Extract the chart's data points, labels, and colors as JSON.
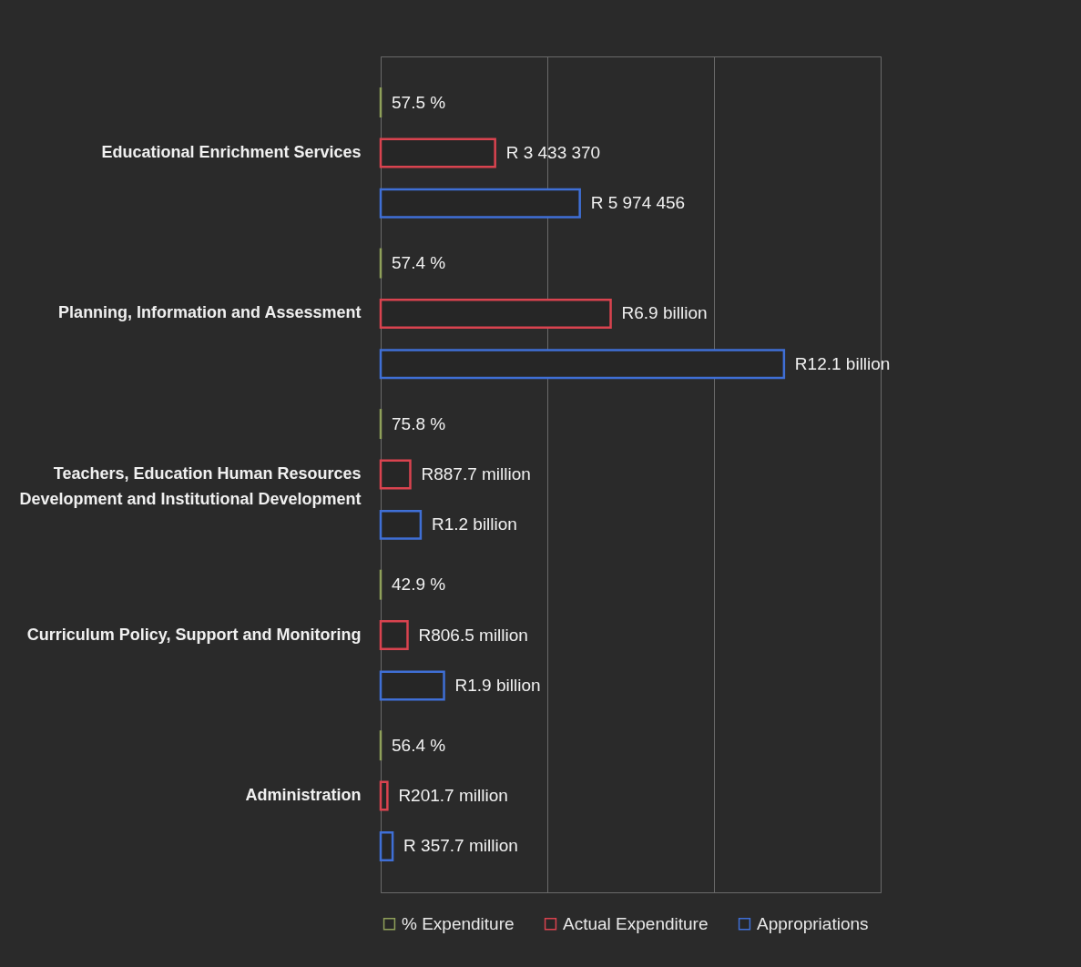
{
  "chart_data": {
    "type": "bar",
    "orientation": "horizontal",
    "grid": "x",
    "legend": "bottom",
    "xlim": [
      0,
      15000000000
    ],
    "xticks": [
      {
        "value": 0,
        "label": null
      },
      {
        "value": 5000000000,
        "label": null
      },
      {
        "value": 10000000000,
        "label": null
      },
      {
        "value": 15000000000,
        "label": null
      }
    ],
    "categories": [
      "Educational Enrichment Services",
      "Planning, Information and Assessment",
      "Teachers, Education Human Resources Development and Institutional Development",
      "Curriculum Policy, Support and Monitoring",
      "Administration"
    ],
    "series": [
      {
        "name": "% Expenditure",
        "color": "#8fa05a",
        "values": [
          57.5,
          57.4,
          75.8,
          42.9,
          56.4
        ],
        "value_labels": [
          "57.5 %",
          "57.4 %",
          "75.8 %",
          "42.9 %",
          "56.4 %"
        ]
      },
      {
        "name": "Actual Expenditure",
        "color": "#d9434f",
        "values": [
          3433370000,
          6900000000,
          887700000,
          806500000,
          201700000
        ],
        "value_labels": [
          "R 3 433 370",
          "R6.9 billion",
          "R887.7 million",
          "R806.5 million",
          "R201.7 million"
        ]
      },
      {
        "name": "Appropriations",
        "color": "#3f6fd6",
        "values": [
          5974456000,
          12100000000,
          1200000000,
          1900000000,
          357700000
        ],
        "value_labels": [
          "R 5 974 456",
          "R12.1 billion",
          "R1.2 billion",
          "R1.9 billion",
          "R 357.7 million"
        ]
      }
    ]
  }
}
